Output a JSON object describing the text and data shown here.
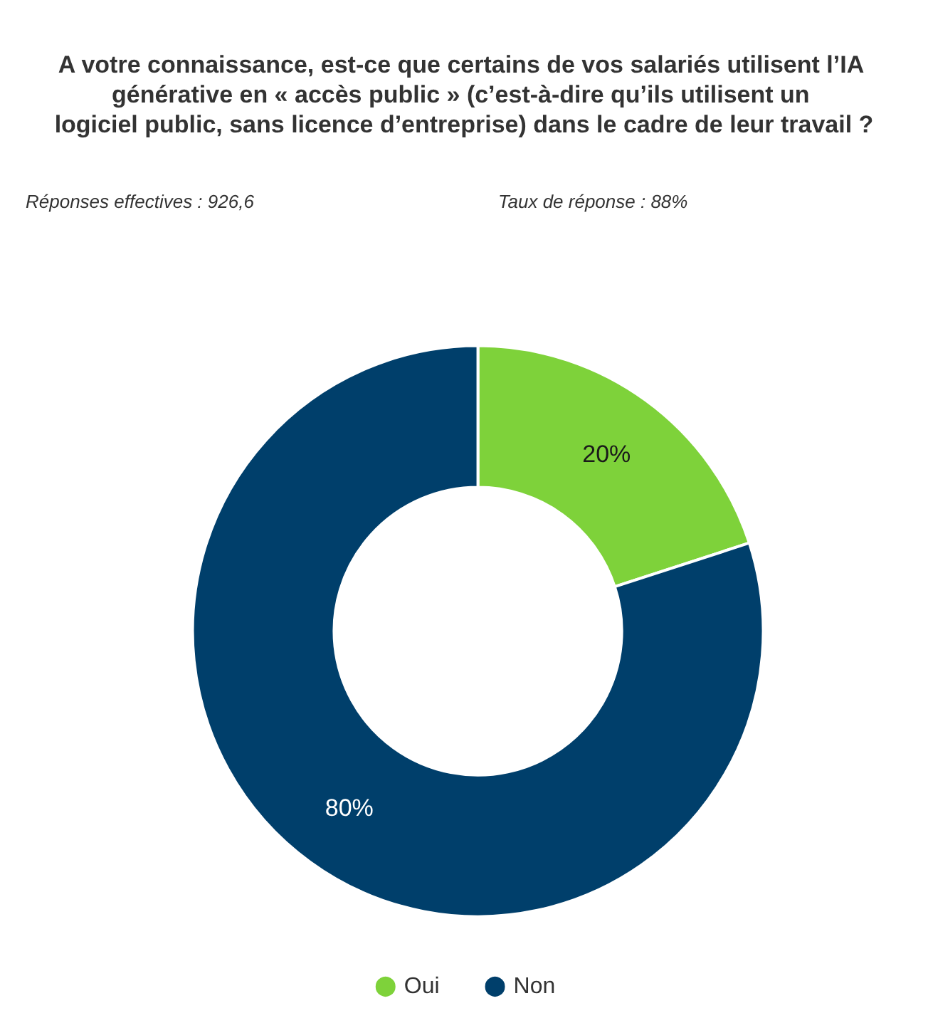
{
  "chart_data": {
    "type": "donut",
    "title": "A votre connaissance, est-ce que certains de vos salariés utilisent l’IA générative en « accès public » (c’est-à-dire qu’ils utilisent un logiciel public, sans licence d’entreprise) dans le cadre de leur travail ?",
    "annotations": [
      "Réponses effectives : 926,6",
      "Taux de réponse : 88%"
    ],
    "categories": [
      "Oui",
      "Non"
    ],
    "values": [
      20,
      80
    ],
    "value_labels": [
      "20%",
      "80%"
    ],
    "colors": [
      "#7ed23a",
      "#003f6b"
    ],
    "legend": "bottom"
  }
}
